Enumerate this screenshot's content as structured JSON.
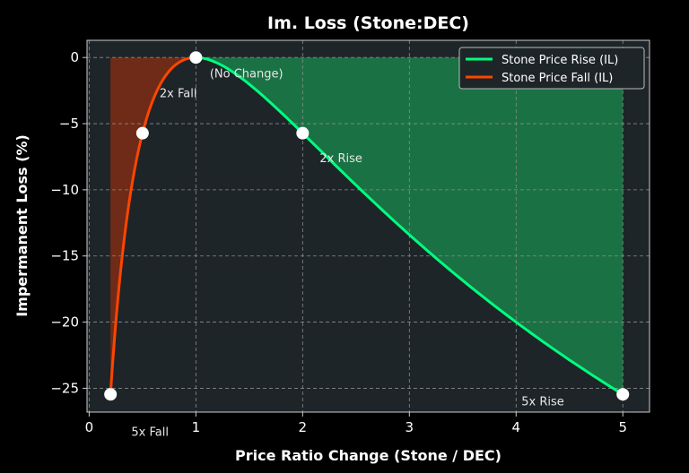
{
  "chart_data": {
    "type": "line",
    "title": "Im. Loss (Stone:DEC)",
    "xlabel": "Price Ratio Change (Stone / DEC)",
    "ylabel": "Impermanent Loss (%)",
    "xlim": [
      -0.02,
      5.25
    ],
    "ylim": [
      -26.8,
      1.3
    ],
    "x_ticks": [
      0,
      1,
      2,
      3,
      4,
      5
    ],
    "y_ticks": [
      0,
      -5,
      -10,
      -15,
      -20,
      -25
    ],
    "x_tick_labels": [
      "0",
      "1",
      "2",
      "3",
      "4",
      "5"
    ],
    "y_tick_labels": [
      "0",
      "−5",
      "−10",
      "−15",
      "−20",
      "−25"
    ],
    "grid": true,
    "legend_position": "top-right",
    "series": [
      {
        "name": "Stone Price Rise (IL)",
        "color": "#00ff7f",
        "fill_color": "#1a8c4e",
        "x_range": [
          1,
          5
        ],
        "formula": "(2*sqrt(r)/(1+r) - 1) * 100"
      },
      {
        "name": "Stone Price Fall (IL)",
        "color": "#ff4500",
        "fill_color": "#8b2e12",
        "x_range": [
          0.2,
          1
        ],
        "formula": "(2*sqrt(r)/(1+r) - 1) * 100"
      }
    ],
    "points": [
      {
        "x": 0.2,
        "y": -25.46
      },
      {
        "x": 0.5,
        "y": -5.72
      },
      {
        "x": 1,
        "y": 0
      },
      {
        "x": 2,
        "y": -5.72
      },
      {
        "x": 5,
        "y": -25.46
      }
    ],
    "annotations": [
      {
        "text": "5x Fall",
        "x": 0.2,
        "y": -28.6
      },
      {
        "text": "2x Fall",
        "x": 0.66,
        "y": -3.0
      },
      {
        "text": "(No Change)",
        "x": 1.13,
        "y": -1.5
      },
      {
        "text": "2x Rise",
        "x": 2.16,
        "y": -7.9
      },
      {
        "text": "5x Rise",
        "x": 4.05,
        "y": -26.3
      }
    ]
  },
  "colors": {
    "background": "#000000",
    "plot_background": "#1e2528",
    "grid": "#8a8a8a",
    "axis": "#cccccc",
    "marker": "#ffffff"
  }
}
